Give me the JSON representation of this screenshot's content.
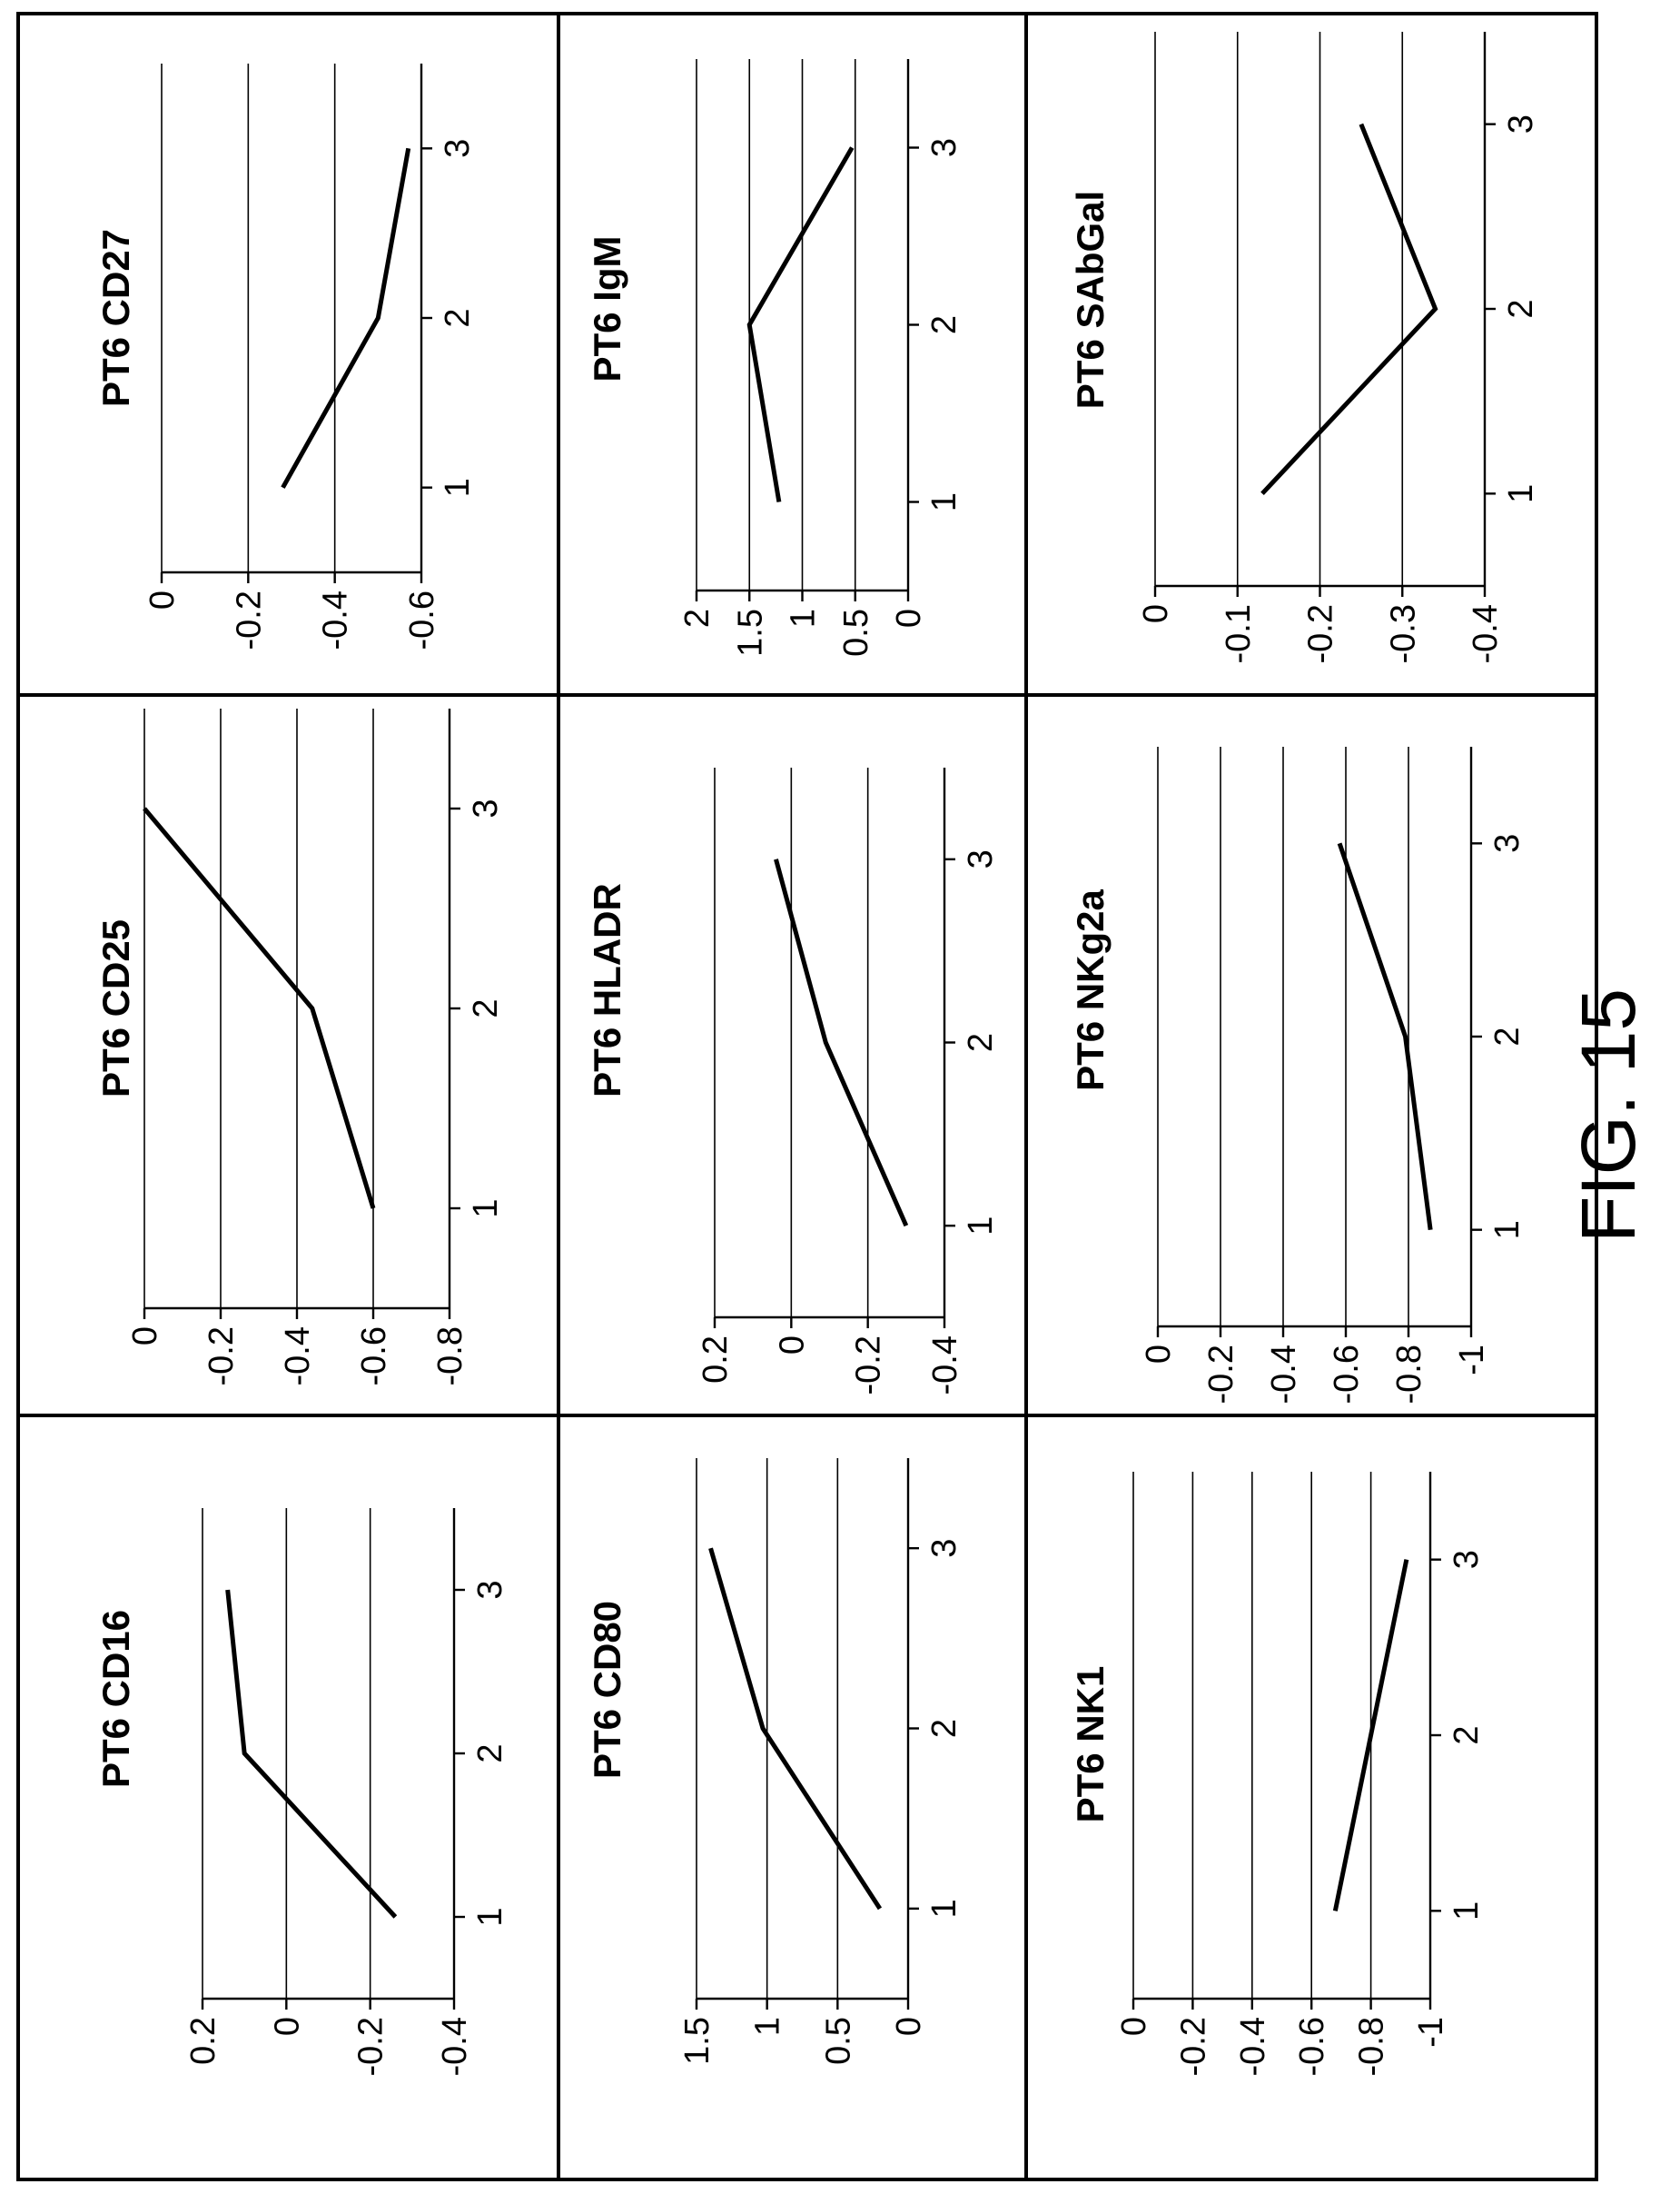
{
  "figure": {
    "label": "FIG. 15"
  },
  "chart_data": [
    {
      "type": "line",
      "title": "PT6 CD16",
      "x": [
        1,
        2,
        3
      ],
      "values": [
        -0.26,
        0.1,
        0.14
      ],
      "ylim": [
        -0.4,
        0.2
      ],
      "xlim": [
        0.5,
        3.5
      ],
      "yticks": [
        0.2,
        0,
        -0.2,
        -0.4
      ],
      "ytick_labels": [
        "0.2",
        "0",
        "-0.2",
        "-0.4"
      ],
      "xticks": [
        1,
        2,
        3
      ],
      "xtick_labels": [
        "1",
        "2",
        "3"
      ],
      "grid": true
    },
    {
      "type": "line",
      "title": "PT6 CD25",
      "x": [
        1,
        2,
        3
      ],
      "values": [
        -0.6,
        -0.44,
        0.0
      ],
      "ylim": [
        -0.8,
        0
      ],
      "xlim": [
        0.5,
        3.5
      ],
      "yticks": [
        0,
        -0.2,
        -0.4,
        -0.6,
        -0.8
      ],
      "ytick_labels": [
        "0",
        "-0.2",
        "-0.4",
        "-0.6",
        "-0.8"
      ],
      "xticks": [
        1,
        2,
        3
      ],
      "xtick_labels": [
        "1",
        "2",
        "3"
      ],
      "grid": true
    },
    {
      "type": "line",
      "title": "PT6 CD27",
      "x": [
        1,
        2,
        3
      ],
      "values": [
        -0.28,
        -0.5,
        -0.57
      ],
      "ylim": [
        -0.6,
        0
      ],
      "xlim": [
        0.5,
        3.5
      ],
      "yticks": [
        0,
        -0.2,
        -0.4,
        -0.6
      ],
      "ytick_labels": [
        "0",
        "-0.2",
        "-0.4",
        "-0.6"
      ],
      "xticks": [
        1,
        2,
        3
      ],
      "xtick_labels": [
        "1",
        "2",
        "3"
      ],
      "grid": true
    },
    {
      "type": "line",
      "title": "PT6 CD80",
      "x": [
        1,
        2,
        3
      ],
      "values": [
        0.2,
        1.03,
        1.4
      ],
      "ylim": [
        0,
        1.5
      ],
      "xlim": [
        0.5,
        3.5
      ],
      "yticks": [
        1.5,
        1,
        0.5,
        0
      ],
      "ytick_labels": [
        "1.5",
        "1",
        "0.5",
        "0"
      ],
      "xticks": [
        1,
        2,
        3
      ],
      "xtick_labels": [
        "1",
        "2",
        "3"
      ],
      "grid": true
    },
    {
      "type": "line",
      "title": "PT6 HLADR",
      "x": [
        1,
        2,
        3
      ],
      "values": [
        -0.3,
        -0.09,
        0.04
      ],
      "ylim": [
        -0.4,
        0.2
      ],
      "xlim": [
        0.5,
        3.5
      ],
      "yticks": [
        0.2,
        0,
        -0.2,
        -0.4
      ],
      "ytick_labels": [
        "0.2",
        "0",
        "-0.2",
        "-0.4"
      ],
      "xticks": [
        1,
        2,
        3
      ],
      "xtick_labels": [
        "1",
        "2",
        "3"
      ],
      "grid": true
    },
    {
      "type": "line",
      "title": "PT6 IgM",
      "x": [
        1,
        2,
        3
      ],
      "values": [
        1.22,
        1.5,
        0.53
      ],
      "ylim": [
        0,
        2
      ],
      "xlim": [
        0.5,
        3.5
      ],
      "yticks": [
        2,
        1.5,
        1,
        0.5,
        0
      ],
      "ytick_labels": [
        "2",
        "1.5",
        "1",
        "0.5",
        "0"
      ],
      "xticks": [
        1,
        2,
        3
      ],
      "xtick_labels": [
        "1",
        "2",
        "3"
      ],
      "grid": true
    },
    {
      "type": "line",
      "title": "PT6 NK1",
      "x": [
        1,
        2,
        3
      ],
      "values": [
        -0.68,
        -0.8,
        -0.92
      ],
      "ylim": [
        -1,
        0
      ],
      "xlim": [
        0.5,
        3.5
      ],
      "yticks": [
        0,
        -0.2,
        -0.4,
        -0.6,
        -0.8,
        -1
      ],
      "ytick_labels": [
        "0",
        "-0.2",
        "-0.4",
        "-0.6",
        "-0.8",
        "-1"
      ],
      "xticks": [
        1,
        2,
        3
      ],
      "xtick_labels": [
        "1",
        "2",
        "3"
      ],
      "grid": true
    },
    {
      "type": "line",
      "title": "PT6 NKg2a",
      "x": [
        1,
        2,
        3
      ],
      "values": [
        -0.87,
        -0.79,
        -0.58
      ],
      "ylim": [
        -1,
        0
      ],
      "xlim": [
        0.5,
        3.5
      ],
      "yticks": [
        0,
        -0.2,
        -0.4,
        -0.6,
        -0.8,
        -1
      ],
      "ytick_labels": [
        "0",
        "-0.2",
        "-0.4",
        "-0.6",
        "-0.8",
        "-1"
      ],
      "xticks": [
        1,
        2,
        3
      ],
      "xtick_labels": [
        "1",
        "2",
        "3"
      ],
      "grid": true
    },
    {
      "type": "line",
      "title": "PT6 SAbGal",
      "x": [
        1,
        2,
        3
      ],
      "values": [
        -0.13,
        -0.34,
        -0.25
      ],
      "ylim": [
        -0.4,
        0
      ],
      "xlim": [
        0.5,
        3.5
      ],
      "yticks": [
        0,
        -0.1,
        -0.2,
        -0.3,
        -0.4
      ],
      "ytick_labels": [
        "0",
        "-0.1",
        "-0.2",
        "-0.3",
        "-0.4"
      ],
      "xticks": [
        1,
        2,
        3
      ],
      "xtick_labels": [
        "1",
        "2",
        "3"
      ],
      "grid": true
    }
  ]
}
